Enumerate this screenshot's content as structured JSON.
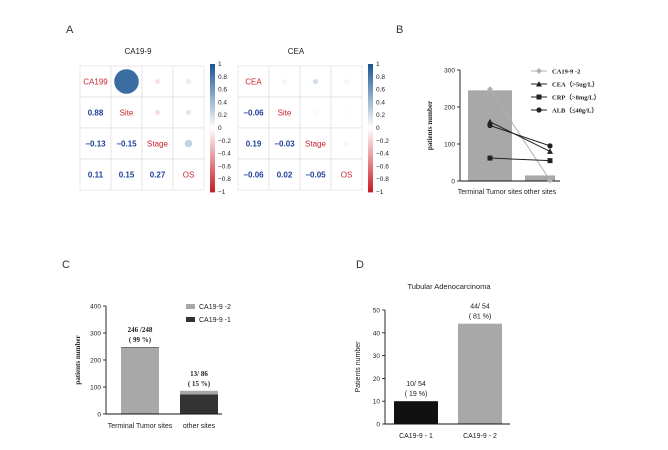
{
  "panels": {
    "a": "A",
    "b": "B",
    "c": "C",
    "d": "D"
  },
  "colors": {
    "grey": "#a8a8a8",
    "dark": "#333333",
    "black": "#111111",
    "corr_pos": "#1f5a96",
    "corr_neg": "#c8232c",
    "corr_text_blue": "#1f3f9b"
  },
  "chart_data": [
    {
      "id": "A1",
      "type": "heatmap",
      "title": "CA19-9",
      "variables": [
        "CA199",
        "Site",
        "Stage",
        "OS"
      ],
      "lower": [
        [
          null,
          null,
          null
        ],
        [
          0.88
        ],
        [
          -0.13,
          -0.15
        ],
        [
          0.11,
          0.15,
          0.27
        ]
      ],
      "matrix": [
        [
          1,
          0.88,
          -0.13,
          0.11
        ],
        [
          0.88,
          1,
          -0.15,
          0.15
        ],
        [
          -0.13,
          -0.15,
          1,
          0.27
        ],
        [
          0.11,
          0.15,
          0.27,
          1
        ]
      ],
      "lower_labels": [
        [
          "0.88"
        ],
        [
          "−0.13",
          "−0.15"
        ],
        [
          "0.11",
          "0.15",
          "0.27"
        ]
      ],
      "colorbar_ticks": [
        "1",
        "0.8",
        "0.6",
        "0.4",
        "0.2",
        "0",
        "−0.2",
        "−0.4",
        "−0.6",
        "−0.8",
        "−1"
      ]
    },
    {
      "id": "A2",
      "type": "heatmap",
      "title": "CEA",
      "variables": [
        "CEA",
        "Site",
        "Stage",
        "OS"
      ],
      "matrix": [
        [
          1,
          -0.06,
          0.19,
          -0.06
        ],
        [
          -0.06,
          1,
          -0.03,
          0.02
        ],
        [
          0.19,
          -0.03,
          1,
          -0.05
        ],
        [
          -0.06,
          0.02,
          -0.05,
          1
        ]
      ],
      "lower_labels": [
        [
          "−0.06"
        ],
        [
          "0.19",
          "−0.03"
        ],
        [
          "−0.06",
          "0.02",
          "−0.05"
        ]
      ],
      "colorbar_ticks": [
        "1",
        "0.8",
        "0.6",
        "0.4",
        "0.2",
        "0",
        "−0.2",
        "−0.4",
        "−0.6",
        "−0.8",
        "−1"
      ]
    },
    {
      "id": "B",
      "type": "bar",
      "categories": [
        "Terminal Tumor sites",
        "other sites"
      ],
      "bar_values": [
        245,
        15
      ],
      "ylabel": "patients number",
      "ylim": [
        0,
        300
      ],
      "yticks": [
        "0",
        "100",
        "200",
        "300"
      ],
      "series": [
        {
          "name": "CA19-9 -2",
          "values": [
            248,
            2
          ],
          "marker": "diamond",
          "color": "#b0b0b0"
        },
        {
          "name": "CEA（>5ug/L）",
          "values": [
            160,
            80
          ],
          "marker": "triangle",
          "color": "#222222"
        },
        {
          "name": "CRP（>8mg/L）",
          "values": [
            62,
            55
          ],
          "marker": "square",
          "color": "#222222"
        },
        {
          "name": "ALB（≤40g/L）",
          "values": [
            150,
            95
          ],
          "marker": "circle",
          "color": "#222222"
        }
      ]
    },
    {
      "id": "C",
      "type": "bar",
      "categories": [
        "Terminal Tumor sites",
        "other sites"
      ],
      "series": [
        {
          "name": "CA19-9 -2",
          "values": [
            246,
            13
          ],
          "color": "#a8a8a8"
        },
        {
          "name": "CA19-9 -1",
          "values": [
            2,
            73
          ],
          "color": "#333333"
        }
      ],
      "ylabel": "patients number",
      "ylim": [
        0,
        400
      ],
      "yticks": [
        "0",
        "100",
        "200",
        "300",
        "400"
      ],
      "annotations": [
        {
          "line1": "246 /248",
          "line2": "( 99 %)"
        },
        {
          "line1": "13/ 86",
          "line2": "( 15 %)"
        }
      ]
    },
    {
      "id": "D",
      "type": "bar",
      "title": "Tubular Adenocarcinoma",
      "categories": [
        "CA19-9 - 1",
        "CA19-9 - 2"
      ],
      "values": [
        10,
        44
      ],
      "colors": [
        "#111111",
        "#a8a8a8"
      ],
      "ylabel": "Patients number",
      "ylim": [
        0,
        50
      ],
      "yticks": [
        "0",
        "10",
        "20",
        "30",
        "40",
        "50"
      ],
      "annotations": [
        {
          "line1": "10/ 54",
          "line2": "( 19 %)"
        },
        {
          "line1": "44/ 54",
          "line2": "( 81 %)"
        }
      ]
    }
  ]
}
